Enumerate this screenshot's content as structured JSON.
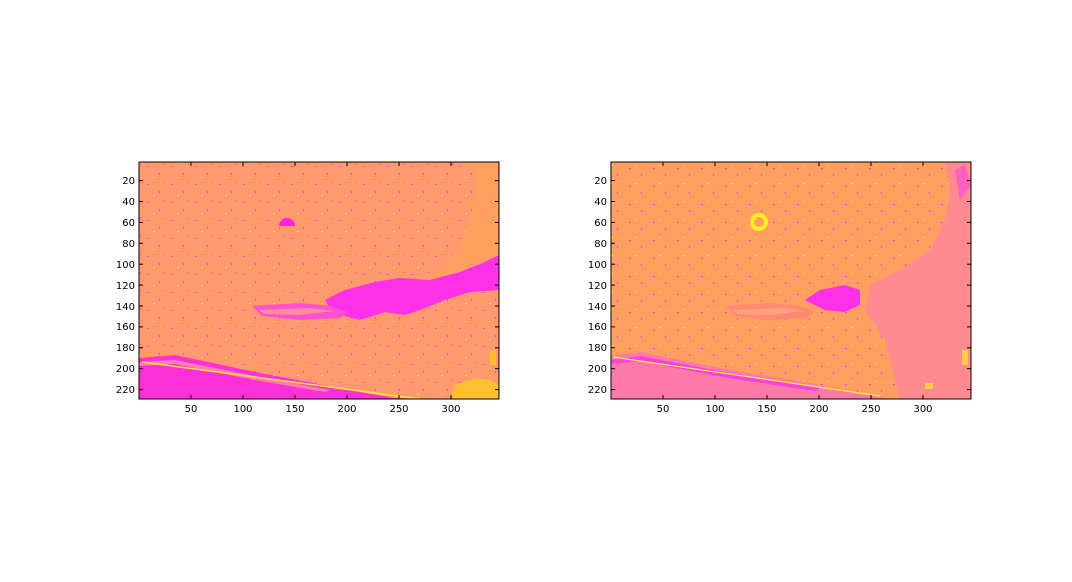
{
  "figure": {
    "panels": [
      {
        "id": "left",
        "image_description_colors": {
          "background": "#FF9A6E",
          "magenta": "#FF2CF0",
          "pink": "#FF72B8",
          "yellow": "#FFE020",
          "orange": "#FFB040"
        },
        "x_ticks": [
          "50",
          "100",
          "150",
          "200",
          "250",
          "300"
        ],
        "y_ticks": [
          "20",
          "40",
          "60",
          "80",
          "100",
          "120",
          "140",
          "160",
          "180",
          "200",
          "220"
        ]
      },
      {
        "id": "right",
        "image_description_colors": {
          "background": "#FFA060",
          "magenta": "#FF2CF0",
          "pink": "#FF7AA8",
          "yellow": "#FFF020",
          "orange": "#FFB040"
        },
        "x_ticks": [
          "50",
          "100",
          "150",
          "200",
          "250",
          "300"
        ],
        "y_ticks": [
          "20",
          "40",
          "60",
          "80",
          "100",
          "120",
          "140",
          "160",
          "180",
          "200",
          "220"
        ]
      }
    ],
    "axis": {
      "x_range": [
        0,
        344
      ],
      "y_range": [
        0,
        227
      ]
    }
  }
}
